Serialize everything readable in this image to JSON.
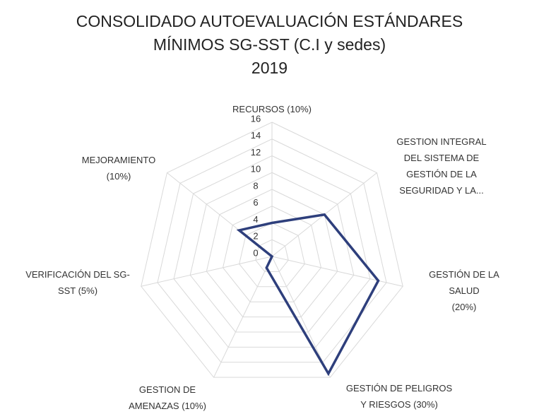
{
  "chart_data": {
    "type": "radar",
    "title": "CONSOLIDADO AUTOEVALUACIÓN ESTÁNDARES\nMÍNIMOS SG-SST  (C.I y sedes)\n2019",
    "categories": [
      "RECURSOS (10%)",
      "GESTION INTEGRAL\nDEL SISTEMA DE\nGESTIÓN DE LA\nSEGURIDAD Y LA...",
      "GESTIÓN DE LA SALUD\n(20%)",
      "GESTIÓN DE PELIGROS\nY RIESGOS (30%)",
      "GESTION DE\nAMENAZAS (10%)",
      "VERIFICACIÓN DEL SG-\nSST (5%)",
      "MEJORAMIENTO\n(10%)"
    ],
    "values": [
      4,
      8,
      13,
      15.5,
      1.5,
      0,
      5
    ],
    "color": "#2e3f7c",
    "ylim": [
      0,
      16
    ],
    "yticks": [
      0,
      2,
      4,
      6,
      8,
      10,
      12,
      14,
      16
    ],
    "grid": true
  }
}
